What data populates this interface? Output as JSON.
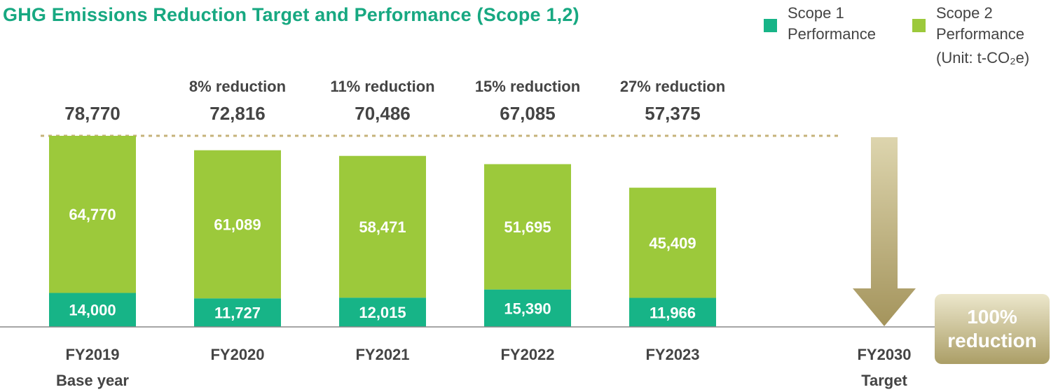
{
  "chart_data": {
    "type": "bar",
    "title": "GHG Emissions Reduction Target and Performance (Scope 1,2)",
    "unit": "(Unit: t-CO₂e)",
    "categories": [
      "FY2019",
      "FY2020",
      "FY2021",
      "FY2022",
      "FY2023"
    ],
    "category_sublabels": [
      "Base year",
      "",
      "",
      "",
      ""
    ],
    "series": [
      {
        "name": "Scope 1 Performance",
        "values": [
          14000,
          11727,
          12015,
          15390,
          11966
        ],
        "value_labels": [
          "14,000",
          "11,727",
          "12,015",
          "15,390",
          "11,966"
        ]
      },
      {
        "name": "Scope 2 Performance",
        "values": [
          64770,
          61089,
          58471,
          51695,
          45409
        ],
        "value_labels": [
          "64,770",
          "61,089",
          "58,471",
          "51,695",
          "45,409"
        ]
      }
    ],
    "totals": [
      78770,
      72816,
      70486,
      67085,
      57375
    ],
    "total_labels": [
      "78,770",
      "72,816",
      "70,486",
      "67,085",
      "57,375"
    ],
    "reduction_labels": [
      "",
      "8% reduction",
      "11% reduction",
      "15% reduction",
      "27% reduction"
    ],
    "target": {
      "category": "FY2030",
      "sublabel": "Target",
      "label": "100% reduction"
    },
    "colors": {
      "scope1": "#17b487",
      "scope2": "#9cc93b",
      "title": "#17a881",
      "reference_line": "#c6b37a",
      "text": "#444444"
    }
  },
  "legend": {
    "scope1": {
      "line1": "Scope 1",
      "line2": "Performance"
    },
    "scope2": {
      "line1": "Scope 2",
      "line2": "Performance"
    }
  },
  "target_box": {
    "line1": "100%",
    "line2": "reduction"
  }
}
